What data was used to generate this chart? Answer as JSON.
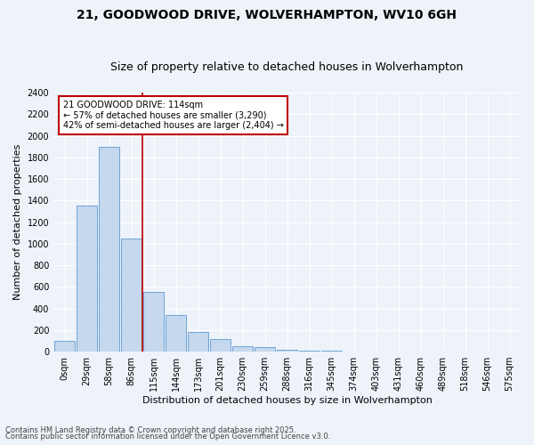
{
  "title": "21, GOODWOOD DRIVE, WOLVERHAMPTON, WV10 6GH",
  "subtitle": "Size of property relative to detached houses in Wolverhampton",
  "xlabel": "Distribution of detached houses by size in Wolverhampton",
  "ylabel": "Number of detached properties",
  "footer1": "Contains HM Land Registry data © Crown copyright and database right 2025.",
  "footer2": "Contains public sector information licensed under the Open Government Licence v3.0.",
  "categories": [
    "0sqm",
    "29sqm",
    "58sqm",
    "86sqm",
    "115sqm",
    "144sqm",
    "173sqm",
    "201sqm",
    "230sqm",
    "259sqm",
    "288sqm",
    "316sqm",
    "345sqm",
    "374sqm",
    "403sqm",
    "431sqm",
    "460sqm",
    "489sqm",
    "518sqm",
    "546sqm",
    "575sqm"
  ],
  "values": [
    100,
    1350,
    1900,
    1050,
    550,
    340,
    185,
    115,
    50,
    40,
    20,
    10,
    10,
    0,
    0,
    0,
    0,
    0,
    0,
    0,
    0
  ],
  "bar_color": "#c5d8ed",
  "bar_edge_color": "#5b9bd5",
  "vline_x_index": 3.5,
  "vline_color": "#c00000",
  "annotation_text": "21 GOODWOOD DRIVE: 114sqm\n← 57% of detached houses are smaller (3,290)\n42% of semi-detached houses are larger (2,404) →",
  "annotation_box_color": "#ffffff",
  "annotation_box_edgecolor": "#c00000",
  "ylim": [
    0,
    2400
  ],
  "yticks": [
    0,
    200,
    400,
    600,
    800,
    1000,
    1200,
    1400,
    1600,
    1800,
    2000,
    2200,
    2400
  ],
  "bg_color": "#eef2f9",
  "grid_color": "#ffffff",
  "title_fontsize": 10,
  "subtitle_fontsize": 9,
  "axis_label_fontsize": 8,
  "tick_fontsize": 7,
  "footer_fontsize": 6
}
